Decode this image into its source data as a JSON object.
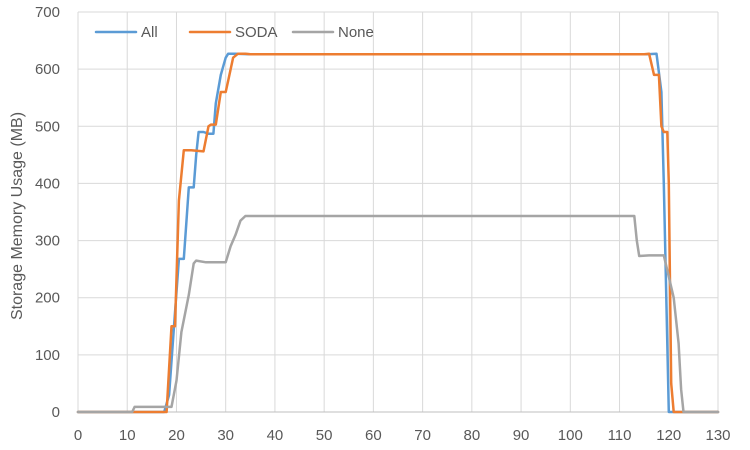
{
  "chart_data": {
    "type": "line",
    "title": "",
    "xlabel": "",
    "ylabel": "Storage Memory Usage (MB)",
    "xlim": [
      0,
      130
    ],
    "ylim": [
      0,
      700
    ],
    "x_ticks": [
      "0",
      "10",
      "20",
      "30",
      "40",
      "50",
      "60",
      "70",
      "80",
      "90",
      "100",
      "110",
      "120",
      "130"
    ],
    "y_ticks": [
      "0",
      "100",
      "200",
      "300",
      "400",
      "500",
      "600",
      "700"
    ],
    "grid": true,
    "legend_position": "top-left",
    "series": [
      {
        "name": "All",
        "color": "#5B9BD5",
        "points": [
          [
            0,
            0
          ],
          [
            17.5,
            0
          ],
          [
            18.5,
            30
          ],
          [
            19.5,
            150
          ],
          [
            20.5,
            268
          ],
          [
            21.5,
            268
          ],
          [
            22,
            330
          ],
          [
            22.5,
            393
          ],
          [
            23.5,
            393
          ],
          [
            24,
            450
          ],
          [
            24.5,
            490
          ],
          [
            25.5,
            490
          ],
          [
            26.5,
            487
          ],
          [
            27.5,
            487
          ],
          [
            28,
            540
          ],
          [
            29,
            590
          ],
          [
            30,
            620
          ],
          [
            30.5,
            627
          ],
          [
            32,
            627
          ],
          [
            35,
            626
          ],
          [
            115.5,
            626
          ],
          [
            117.5,
            627
          ],
          [
            118.5,
            560
          ],
          [
            119,
            400
          ],
          [
            119.5,
            200
          ],
          [
            120,
            0
          ],
          [
            130,
            0
          ]
        ]
      },
      {
        "name": "SODA",
        "color": "#ED7D31",
        "points": [
          [
            0,
            0
          ],
          [
            18,
            0
          ],
          [
            19,
            150
          ],
          [
            19.7,
            150
          ],
          [
            20.5,
            370
          ],
          [
            21.5,
            458
          ],
          [
            23,
            458
          ],
          [
            25.5,
            456
          ],
          [
            26.5,
            500
          ],
          [
            27,
            503
          ],
          [
            28,
            503
          ],
          [
            29,
            560
          ],
          [
            30,
            560
          ],
          [
            30.5,
            580
          ],
          [
            31.5,
            620
          ],
          [
            32.5,
            627
          ],
          [
            34,
            627
          ],
          [
            35,
            626
          ],
          [
            115,
            626
          ],
          [
            116,
            627
          ],
          [
            117,
            590
          ],
          [
            118,
            590
          ],
          [
            118.5,
            500
          ],
          [
            119,
            490
          ],
          [
            119.7,
            490
          ],
          [
            120,
            400
          ],
          [
            120.5,
            50
          ],
          [
            121,
            0
          ],
          [
            130,
            0
          ]
        ]
      },
      {
        "name": "None",
        "color": "#A5A5A5",
        "points": [
          [
            0,
            0
          ],
          [
            11,
            0
          ],
          [
            11.5,
            9
          ],
          [
            15.5,
            9
          ],
          [
            17.5,
            9
          ],
          [
            19,
            9
          ],
          [
            20,
            55
          ],
          [
            21,
            140
          ],
          [
            22.5,
            205
          ],
          [
            23.5,
            260
          ],
          [
            24,
            265
          ],
          [
            26,
            262
          ],
          [
            28,
            262
          ],
          [
            30,
            262
          ],
          [
            31,
            290
          ],
          [
            32,
            310
          ],
          [
            33,
            335
          ],
          [
            34,
            343
          ],
          [
            112,
            343
          ],
          [
            113,
            343
          ],
          [
            113.5,
            300
          ],
          [
            114,
            273
          ],
          [
            116,
            274
          ],
          [
            119,
            274
          ],
          [
            121,
            200
          ],
          [
            122,
            120
          ],
          [
            122.5,
            40
          ],
          [
            123,
            0
          ],
          [
            130,
            0
          ]
        ]
      }
    ]
  }
}
